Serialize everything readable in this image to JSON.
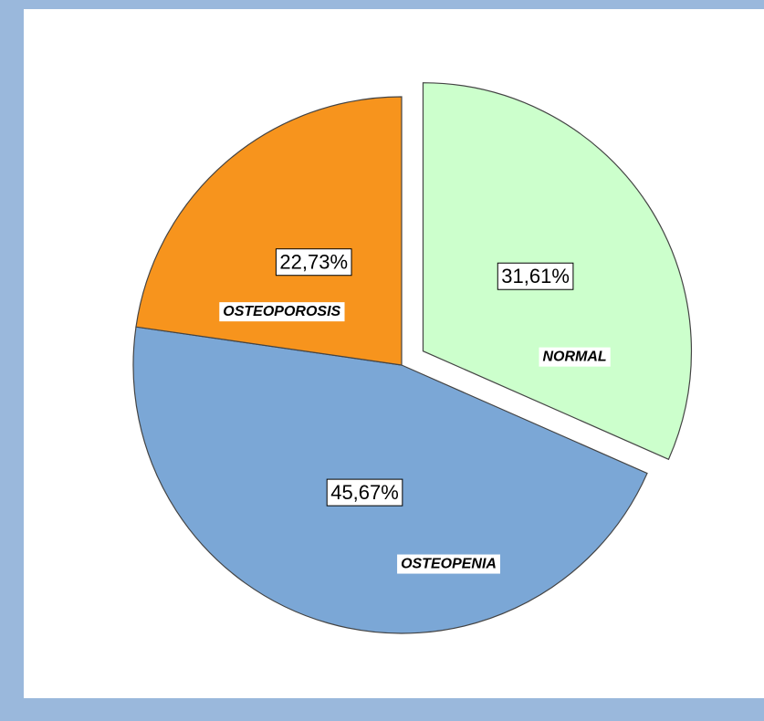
{
  "chart_data": {
    "type": "pie",
    "categories": [
      "NORMAL",
      "OSTEOPENIA",
      "OSTEOPOROSIS"
    ],
    "values": [
      31.61,
      45.67,
      22.73
    ],
    "value_labels": [
      "31,61%",
      "45,67%",
      "22,73%"
    ],
    "colors": [
      "#ccffcc",
      "#7ba7d6",
      "#f7941d"
    ],
    "exploded": [
      true,
      false,
      false
    ]
  }
}
